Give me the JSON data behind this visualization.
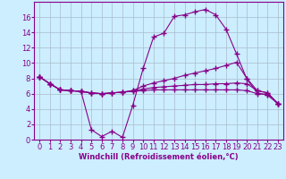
{
  "xlabel": "Windchill (Refroidissement éolien,°C)",
  "background_color": "#cceeff",
  "grid_color": "#aabbcc",
  "line_color": "#880088",
  "xlim": [
    -0.5,
    23.5
  ],
  "ylim": [
    0,
    18
  ],
  "xticks": [
    0,
    1,
    2,
    3,
    4,
    5,
    6,
    7,
    8,
    9,
    10,
    11,
    12,
    13,
    14,
    15,
    16,
    17,
    18,
    19,
    20,
    21,
    22,
    23
  ],
  "yticks": [
    0,
    2,
    4,
    6,
    8,
    10,
    12,
    14,
    16
  ],
  "series": [
    [
      8.2,
      7.3,
      6.5,
      6.4,
      6.3,
      1.3,
      0.4,
      1.1,
      0.3,
      4.5,
      9.3,
      13.4,
      13.9,
      16.1,
      16.3,
      16.7,
      17.0,
      16.3,
      14.4,
      11.2,
      7.9,
      6.1,
      5.8,
      4.7
    ],
    [
      8.2,
      7.3,
      6.5,
      6.4,
      6.3,
      6.1,
      6.0,
      6.1,
      6.2,
      6.4,
      7.0,
      7.4,
      7.7,
      8.0,
      8.4,
      8.7,
      9.0,
      9.3,
      9.7,
      10.1,
      8.0,
      6.4,
      6.1,
      4.7
    ],
    [
      8.2,
      7.3,
      6.5,
      6.4,
      6.3,
      6.1,
      6.0,
      6.1,
      6.2,
      6.4,
      6.6,
      6.8,
      6.9,
      7.0,
      7.1,
      7.2,
      7.2,
      7.3,
      7.3,
      7.4,
      7.3,
      6.4,
      6.1,
      4.7
    ],
    [
      8.2,
      7.3,
      6.5,
      6.4,
      6.3,
      6.1,
      6.0,
      6.1,
      6.2,
      6.3,
      6.4,
      6.5,
      6.5,
      6.5,
      6.5,
      6.5,
      6.5,
      6.5,
      6.5,
      6.5,
      6.4,
      6.0,
      5.9,
      4.7
    ]
  ],
  "tick_fontsize": 6,
  "xlabel_fontsize": 6,
  "marker": "+",
  "markersize": 4,
  "linewidth": 0.8
}
